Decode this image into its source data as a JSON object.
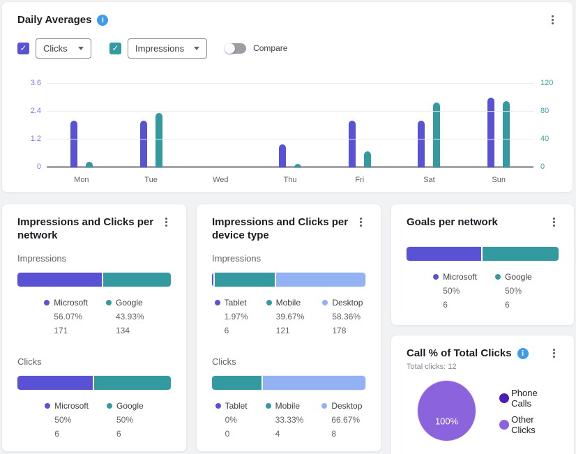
{
  "colors": {
    "purple": "#5a52d4",
    "teal": "#339ba0",
    "light_blue": "#92b2f4",
    "pie_purple": "#8a63dd",
    "dark_purple": "#4a1fb8",
    "info_blue": "#3f9ce8"
  },
  "controls": {
    "metric1_label": "Clicks",
    "metric2_label": "Impressions",
    "metric1_checked": true,
    "metric2_checked": true,
    "checkmark": "✓",
    "compare_label": "Compare",
    "compare_on": false
  },
  "chart_data": [
    {
      "type": "bar",
      "title": "Daily Averages",
      "categories": [
        "Mon",
        "Tue",
        "Wed",
        "Thu",
        "Fri",
        "Sat",
        "Sun"
      ],
      "series": [
        {
          "name": "Clicks",
          "axis": "left",
          "color": "#5a52d4",
          "values": [
            2,
            2,
            0,
            1,
            2,
            2,
            3
          ]
        },
        {
          "name": "Impressions",
          "axis": "right",
          "color": "#339ba0",
          "values": [
            8,
            78,
            0,
            5,
            23,
            93,
            95
          ]
        }
      ],
      "left_axis": {
        "ticks": [
          "0",
          "1.2",
          "2.4",
          "3.6"
        ],
        "max": 3.6
      },
      "right_axis": {
        "ticks": [
          "0",
          "40",
          "80",
          "120"
        ],
        "max": 120
      },
      "grid": true,
      "legend": "none"
    },
    {
      "type": "stacked-bar",
      "title": "Impressions and Clicks per network",
      "sections": [
        {
          "label": "Impressions",
          "segments": [
            {
              "name": "Microsoft",
              "pct": "56.07%",
              "count": "171",
              "color": "#5a52d4"
            },
            {
              "name": "Google",
              "pct": "43.93%",
              "count": "134",
              "color": "#339ba0"
            }
          ]
        },
        {
          "label": "Clicks",
          "segments": [
            {
              "name": "Microsoft",
              "pct": "50%",
              "count": "6",
              "color": "#5a52d4"
            },
            {
              "name": "Google",
              "pct": "50%",
              "count": "6",
              "color": "#339ba0"
            }
          ]
        }
      ]
    },
    {
      "type": "stacked-bar",
      "title": "Impressions and Clicks per device type",
      "sections": [
        {
          "label": "Impressions",
          "segments": [
            {
              "name": "Tablet",
              "pct": "1.97%",
              "count": "6",
              "color": "#5a52d4"
            },
            {
              "name": "Mobile",
              "pct": "39.67%",
              "count": "121",
              "color": "#339ba0"
            },
            {
              "name": "Desktop",
              "pct": "58.36%",
              "count": "178",
              "color": "#92b2f4"
            }
          ]
        },
        {
          "label": "Clicks",
          "segments": [
            {
              "name": "Tablet",
              "pct": "0%",
              "count": "0",
              "color": "#5a52d4"
            },
            {
              "name": "Mobile",
              "pct": "33.33%",
              "count": "4",
              "color": "#339ba0"
            },
            {
              "name": "Desktop",
              "pct": "66.67%",
              "count": "8",
              "color": "#92b2f4"
            }
          ]
        }
      ]
    },
    {
      "type": "stacked-bar",
      "title": "Goals per network",
      "sections": [
        {
          "label": null,
          "segments": [
            {
              "name": "Microsoft",
              "pct": "50%",
              "count": "6",
              "color": "#5a52d4"
            },
            {
              "name": "Google",
              "pct": "50%",
              "count": "6",
              "color": "#339ba0"
            }
          ]
        }
      ]
    },
    {
      "type": "pie",
      "title": "Call % of Total Clicks",
      "subtitle": "Total clicks: 12",
      "slice_label": "100%",
      "slices": [
        {
          "name": "Phone Calls",
          "pct": "0%",
          "color": "#4a1fb8"
        },
        {
          "name": "Other Clicks",
          "pct": "100%",
          "color": "#8a63dd"
        }
      ]
    }
  ]
}
